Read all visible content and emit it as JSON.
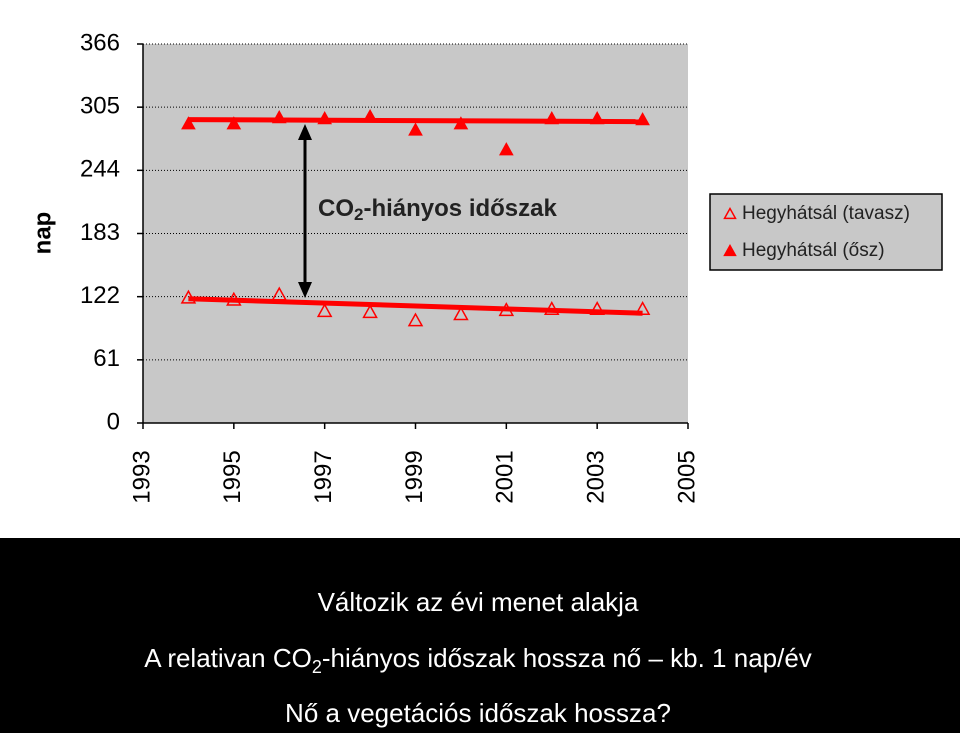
{
  "chart_data": {
    "type": "line",
    "y_label": "nap",
    "x": [
      1994,
      1995,
      1996,
      1997,
      1998,
      1999,
      2000,
      2001,
      2002,
      2003,
      2004
    ],
    "series": [
      {
        "name": "Hegyhátsál (tavasz)",
        "color": "#ff0000",
        "marker": "open-triangle",
        "values": [
          121,
          119,
          124,
          108,
          107,
          99,
          105,
          109,
          110,
          110,
          110
        ],
        "trend_x": [
          1994,
          2004
        ],
        "trend_values": [
          120,
          106
        ]
      },
      {
        "name": "Hegyhátsál (ősz)",
        "color": "#ff0000",
        "marker": "filled-triangle",
        "values": [
          289,
          289,
          295,
          294,
          296,
          283,
          289,
          264,
          294,
          294,
          293
        ],
        "trend_x": [
          1994,
          2004
        ],
        "trend_values": [
          293,
          291
        ]
      }
    ],
    "xlim": [
      1993,
      2005
    ],
    "xticks": [
      1993,
      1995,
      1997,
      1999,
      2001,
      2003,
      2005
    ],
    "ylim": [
      0,
      366
    ],
    "yticks": [
      0,
      61,
      122,
      183,
      244,
      305,
      366
    ],
    "grid": true,
    "legend": "right",
    "annotation": {
      "parts": [
        "CO",
        "2",
        "-hiányos időszak"
      ]
    }
  },
  "caption": {
    "line1": "Változik az évi menet alakja",
    "line2": [
      "A relativan CO",
      "2",
      "-hiányos időszak hossza nő – kb. 1 nap/év"
    ],
    "line3": "Nő a vegetációs időszak hossza?"
  }
}
